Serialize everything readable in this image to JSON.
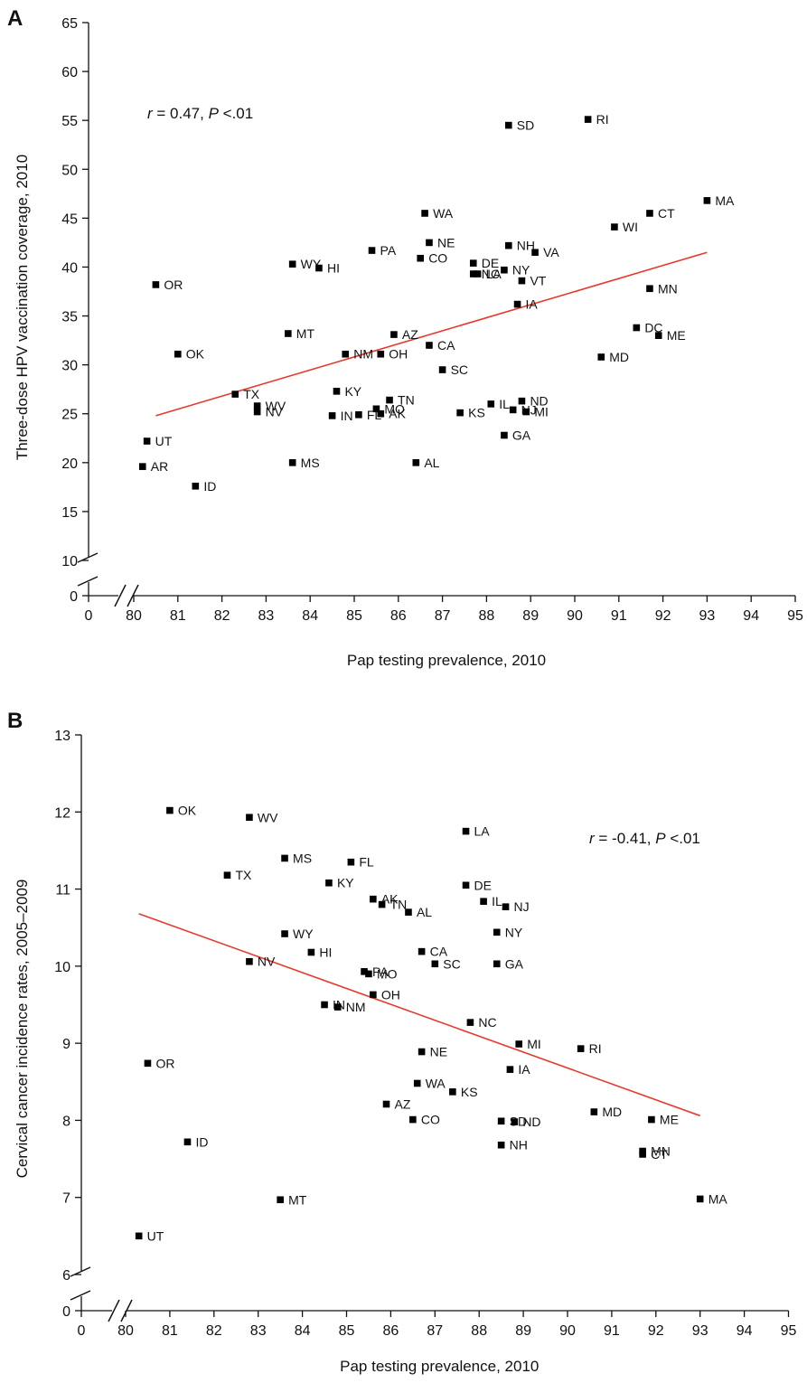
{
  "chart_data": [
    {
      "type": "scatter",
      "panel_label": "A",
      "xlabel": "Pap testing prevalence, 2010",
      "ylabel": "Three-dose HPV vaccination coverage, 2010",
      "annotation": {
        "r_symbol": "r",
        "r_text": " = 0.47, ",
        "p_symbol": "P",
        "p_text": " <.01"
      },
      "x_ticks": [
        "0",
        "80",
        "81",
        "82",
        "83",
        "84",
        "85",
        "86",
        "87",
        "88",
        "89",
        "90",
        "91",
        "92",
        "93",
        "94",
        "95"
      ],
      "y_ticks": [
        "0",
        "10",
        "15",
        "20",
        "25",
        "30",
        "35",
        "40",
        "45",
        "50",
        "55",
        "60",
        "65"
      ],
      "xlim": [
        80,
        95
      ],
      "ylim": [
        10,
        65
      ],
      "axis_break": true,
      "grid": false,
      "trendline": {
        "x1": 80.5,
        "y1": 24.8,
        "x2": 93.0,
        "y2": 41.5,
        "color": "#e8392a"
      },
      "points": [
        {
          "state": "OR",
          "x": 80.5,
          "y": 38.2
        },
        {
          "state": "OK",
          "x": 81.0,
          "y": 31.1
        },
        {
          "state": "UT",
          "x": 80.3,
          "y": 22.2
        },
        {
          "state": "AR",
          "x": 80.2,
          "y": 19.6
        },
        {
          "state": "ID",
          "x": 81.4,
          "y": 17.6
        },
        {
          "state": "TX",
          "x": 82.3,
          "y": 27.0
        },
        {
          "state": "WV",
          "x": 82.8,
          "y": 25.8
        },
        {
          "state": "NV",
          "x": 82.8,
          "y": 25.2
        },
        {
          "state": "WY",
          "x": 83.6,
          "y": 40.3
        },
        {
          "state": "HI",
          "x": 84.2,
          "y": 39.9
        },
        {
          "state": "MT",
          "x": 83.5,
          "y": 33.2
        },
        {
          "state": "MS",
          "x": 83.6,
          "y": 20.0
        },
        {
          "state": "PA",
          "x": 85.4,
          "y": 41.7
        },
        {
          "state": "NM",
          "x": 84.8,
          "y": 31.1
        },
        {
          "state": "OH",
          "x": 85.6,
          "y": 31.1
        },
        {
          "state": "KY",
          "x": 84.6,
          "y": 27.3
        },
        {
          "state": "MO",
          "x": 85.5,
          "y": 25.5
        },
        {
          "state": "IN",
          "x": 84.5,
          "y": 24.8
        },
        {
          "state": "FL",
          "x": 85.1,
          "y": 24.9
        },
        {
          "state": "AK",
          "x": 85.6,
          "y": 25.0
        },
        {
          "state": "TN",
          "x": 85.8,
          "y": 26.4
        },
        {
          "state": "AZ",
          "x": 85.9,
          "y": 33.1
        },
        {
          "state": "WA",
          "x": 86.6,
          "y": 45.5
        },
        {
          "state": "NE",
          "x": 86.7,
          "y": 42.5
        },
        {
          "state": "CO",
          "x": 86.5,
          "y": 40.9
        },
        {
          "state": "CA",
          "x": 86.7,
          "y": 32.0
        },
        {
          "state": "SC",
          "x": 87.0,
          "y": 29.5
        },
        {
          "state": "AL",
          "x": 86.4,
          "y": 20.0
        },
        {
          "state": "KS",
          "x": 87.4,
          "y": 25.1
        },
        {
          "state": "SD",
          "x": 88.5,
          "y": 54.5
        },
        {
          "state": "NH",
          "x": 88.5,
          "y": 42.2
        },
        {
          "state": "DE",
          "x": 87.7,
          "y": 40.4
        },
        {
          "state": "NC",
          "x": 87.7,
          "y": 39.3
        },
        {
          "state": "LA",
          "x": 87.8,
          "y": 39.3
        },
        {
          "state": "NY",
          "x": 88.4,
          "y": 39.7
        },
        {
          "state": "VA",
          "x": 89.1,
          "y": 41.5
        },
        {
          "state": "VT",
          "x": 88.8,
          "y": 38.6
        },
        {
          "state": "IA",
          "x": 88.7,
          "y": 36.2
        },
        {
          "state": "IL",
          "x": 88.1,
          "y": 26.0
        },
        {
          "state": "ND",
          "x": 88.8,
          "y": 26.3
        },
        {
          "state": "NJ",
          "x": 88.6,
          "y": 25.4
        },
        {
          "state": "MI",
          "x": 88.9,
          "y": 25.2
        },
        {
          "state": "GA",
          "x": 88.4,
          "y": 22.8
        },
        {
          "state": "RI",
          "x": 90.3,
          "y": 55.1
        },
        {
          "state": "WI",
          "x": 90.9,
          "y": 44.1
        },
        {
          "state": "CT",
          "x": 91.7,
          "y": 45.5
        },
        {
          "state": "MA",
          "x": 93.0,
          "y": 46.8
        },
        {
          "state": "MN",
          "x": 91.7,
          "y": 37.8
        },
        {
          "state": "DC",
          "x": 91.4,
          "y": 33.8
        },
        {
          "state": "ME",
          "x": 91.9,
          "y": 33.0
        },
        {
          "state": "MD",
          "x": 90.6,
          "y": 30.8
        }
      ]
    },
    {
      "type": "scatter",
      "panel_label": "B",
      "xlabel": "Pap testing prevalence, 2010",
      "ylabel": "Cervical cancer incidence rates, 2005–2009",
      "annotation": {
        "r_symbol": "r",
        "r_text": " = -0.41, ",
        "p_symbol": "P",
        "p_text": " <.01"
      },
      "x_ticks": [
        "0",
        "80",
        "81",
        "82",
        "83",
        "84",
        "85",
        "86",
        "87",
        "88",
        "89",
        "90",
        "91",
        "92",
        "93",
        "94",
        "95"
      ],
      "y_ticks": [
        "0",
        "6",
        "7",
        "8",
        "9",
        "10",
        "11",
        "12",
        "13"
      ],
      "xlim": [
        80,
        95
      ],
      "ylim": [
        6,
        13
      ],
      "axis_break": true,
      "grid": false,
      "trendline": {
        "x1": 80.3,
        "y1": 10.68,
        "x2": 93.0,
        "y2": 8.06,
        "color": "#e8392a"
      },
      "points": [
        {
          "state": "OK",
          "x": 81.0,
          "y": 12.02
        },
        {
          "state": "WV",
          "x": 82.8,
          "y": 11.93
        },
        {
          "state": "MS",
          "x": 83.6,
          "y": 11.4
        },
        {
          "state": "TX",
          "x": 82.3,
          "y": 11.18
        },
        {
          "state": "FL",
          "x": 85.1,
          "y": 11.35
        },
        {
          "state": "KY",
          "x": 84.6,
          "y": 11.08
        },
        {
          "state": "AK",
          "x": 85.6,
          "y": 10.87
        },
        {
          "state": "TN",
          "x": 85.8,
          "y": 10.8
        },
        {
          "state": "AL",
          "x": 86.4,
          "y": 10.7
        },
        {
          "state": "LA",
          "x": 87.7,
          "y": 11.75
        },
        {
          "state": "DE",
          "x": 87.7,
          "y": 11.05
        },
        {
          "state": "IL",
          "x": 88.1,
          "y": 10.84
        },
        {
          "state": "NJ",
          "x": 88.6,
          "y": 10.77
        },
        {
          "state": "NY",
          "x": 88.4,
          "y": 10.44
        },
        {
          "state": "WY",
          "x": 83.6,
          "y": 10.42
        },
        {
          "state": "HI",
          "x": 84.2,
          "y": 10.18
        },
        {
          "state": "NV",
          "x": 82.8,
          "y": 10.06
        },
        {
          "state": "CA",
          "x": 86.7,
          "y": 10.19
        },
        {
          "state": "SC",
          "x": 87.0,
          "y": 10.03
        },
        {
          "state": "GA",
          "x": 88.4,
          "y": 10.03
        },
        {
          "state": "PA",
          "x": 85.4,
          "y": 9.93
        },
        {
          "state": "MO",
          "x": 85.5,
          "y": 9.9
        },
        {
          "state": "OH",
          "x": 85.6,
          "y": 9.63
        },
        {
          "state": "IN",
          "x": 84.5,
          "y": 9.5
        },
        {
          "state": "NM",
          "x": 84.8,
          "y": 9.47
        },
        {
          "state": "NC",
          "x": 87.8,
          "y": 9.27
        },
        {
          "state": "MI",
          "x": 88.9,
          "y": 8.99
        },
        {
          "state": "RI",
          "x": 90.3,
          "y": 8.93
        },
        {
          "state": "NE",
          "x": 86.7,
          "y": 8.89
        },
        {
          "state": "OR",
          "x": 80.5,
          "y": 8.74
        },
        {
          "state": "IA",
          "x": 88.7,
          "y": 8.66
        },
        {
          "state": "WA",
          "x": 86.6,
          "y": 8.48
        },
        {
          "state": "KS",
          "x": 87.4,
          "y": 8.37
        },
        {
          "state": "AZ",
          "x": 85.9,
          "y": 8.21
        },
        {
          "state": "MD",
          "x": 90.6,
          "y": 8.11
        },
        {
          "state": "SD",
          "x": 88.5,
          "y": 7.99
        },
        {
          "state": "ND",
          "x": 88.8,
          "y": 7.98
        },
        {
          "state": "CO",
          "x": 86.5,
          "y": 8.01
        },
        {
          "state": "ME",
          "x": 91.9,
          "y": 8.01
        },
        {
          "state": "ID",
          "x": 81.4,
          "y": 7.72
        },
        {
          "state": "NH",
          "x": 88.5,
          "y": 7.68
        },
        {
          "state": "MN",
          "x": 91.7,
          "y": 7.6
        },
        {
          "state": "CT",
          "x": 91.7,
          "y": 7.56
        },
        {
          "state": "MT",
          "x": 83.5,
          "y": 6.97
        },
        {
          "state": "MA",
          "x": 93.0,
          "y": 6.98
        },
        {
          "state": "UT",
          "x": 80.3,
          "y": 6.5
        }
      ]
    }
  ]
}
